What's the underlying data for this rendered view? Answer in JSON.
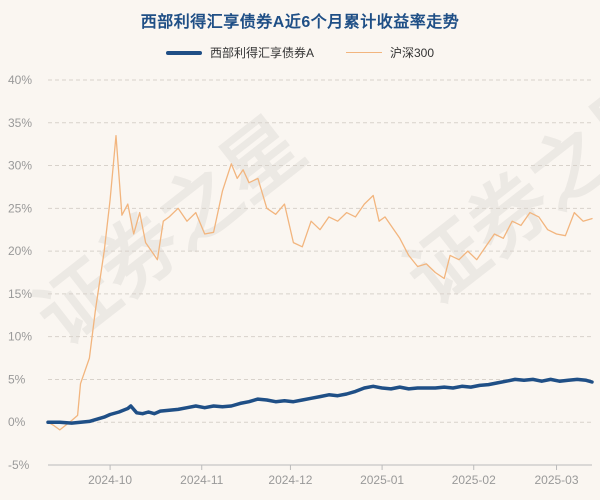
{
  "chart_data": {
    "type": "line",
    "title": "西部利得汇享债券A近6个月累计收益率走势",
    "xlabel": "",
    "ylabel": "",
    "ylim": [
      -5,
      40
    ],
    "y_ticks": [
      "40%",
      "35%",
      "30%",
      "25%",
      "20%",
      "15%",
      "10%",
      "5%",
      "0%",
      "-5%"
    ],
    "y_tick_values": [
      40,
      35,
      30,
      25,
      20,
      15,
      10,
      5,
      0,
      -5
    ],
    "x_range": [
      "2024-09-10",
      "2025-03-13"
    ],
    "x_ticks": [
      "2024-10",
      "2024-11",
      "2024-12",
      "2025-01",
      "2025-02",
      "2025-03"
    ],
    "grid": "horizontal-dashed",
    "legend_position": "top-center",
    "series": [
      {
        "name": "西部利得汇享债券A",
        "color": "#1f4f86",
        "points": [
          [
            "2024-09-10",
            0
          ],
          [
            "2024-09-14",
            0
          ],
          [
            "2024-09-18",
            -0.1
          ],
          [
            "2024-09-21",
            0
          ],
          [
            "2024-09-24",
            0.1
          ],
          [
            "2024-09-26",
            0.3
          ],
          [
            "2024-09-29",
            0.6
          ],
          [
            "2024-10-01",
            0.9
          ],
          [
            "2024-10-04",
            1.2
          ],
          [
            "2024-10-07",
            1.6
          ],
          [
            "2024-10-08",
            1.9
          ],
          [
            "2024-10-09",
            1.5
          ],
          [
            "2024-10-10",
            1.1
          ],
          [
            "2024-10-12",
            1.0
          ],
          [
            "2024-10-14",
            1.2
          ],
          [
            "2024-10-16",
            1.0
          ],
          [
            "2024-10-18",
            1.3
          ],
          [
            "2024-10-21",
            1.4
          ],
          [
            "2024-10-24",
            1.5
          ],
          [
            "2024-10-27",
            1.7
          ],
          [
            "2024-10-30",
            1.9
          ],
          [
            "2024-11-02",
            1.7
          ],
          [
            "2024-11-05",
            1.9
          ],
          [
            "2024-11-08",
            1.8
          ],
          [
            "2024-11-11",
            1.9
          ],
          [
            "2024-11-14",
            2.2
          ],
          [
            "2024-11-17",
            2.4
          ],
          [
            "2024-11-20",
            2.7
          ],
          [
            "2024-11-23",
            2.6
          ],
          [
            "2024-11-26",
            2.4
          ],
          [
            "2024-11-29",
            2.5
          ],
          [
            "2024-12-02",
            2.4
          ],
          [
            "2024-12-05",
            2.6
          ],
          [
            "2024-12-08",
            2.8
          ],
          [
            "2024-12-11",
            3.0
          ],
          [
            "2024-12-14",
            3.2
          ],
          [
            "2024-12-17",
            3.1
          ],
          [
            "2024-12-20",
            3.3
          ],
          [
            "2024-12-23",
            3.6
          ],
          [
            "2024-12-26",
            4.0
          ],
          [
            "2024-12-29",
            4.2
          ],
          [
            "2025-01-01",
            4.0
          ],
          [
            "2025-01-04",
            3.9
          ],
          [
            "2025-01-07",
            4.1
          ],
          [
            "2025-01-10",
            3.9
          ],
          [
            "2025-01-13",
            4.0
          ],
          [
            "2025-01-16",
            4.0
          ],
          [
            "2025-01-19",
            4.0
          ],
          [
            "2025-01-22",
            4.1
          ],
          [
            "2025-01-25",
            4.0
          ],
          [
            "2025-01-28",
            4.2
          ],
          [
            "2025-01-31",
            4.1
          ],
          [
            "2025-02-03",
            4.3
          ],
          [
            "2025-02-06",
            4.4
          ],
          [
            "2025-02-09",
            4.6
          ],
          [
            "2025-02-12",
            4.8
          ],
          [
            "2025-02-15",
            5.0
          ],
          [
            "2025-02-18",
            4.9
          ],
          [
            "2025-02-21",
            5.0
          ],
          [
            "2025-02-24",
            4.8
          ],
          [
            "2025-02-27",
            5.0
          ],
          [
            "2025-03-02",
            4.8
          ],
          [
            "2025-03-05",
            4.9
          ],
          [
            "2025-03-08",
            5.0
          ],
          [
            "2025-03-11",
            4.9
          ],
          [
            "2025-03-13",
            4.7
          ]
        ]
      },
      {
        "name": "沪深300",
        "color": "#f2b57e",
        "points": [
          [
            "2024-09-10",
            0
          ],
          [
            "2024-09-12",
            -0.4
          ],
          [
            "2024-09-14",
            -0.9
          ],
          [
            "2024-09-18",
            0.2
          ],
          [
            "2024-09-20",
            0.8
          ],
          [
            "2024-09-21",
            4.5
          ],
          [
            "2024-09-24",
            7.5
          ],
          [
            "2024-09-26",
            13.0
          ],
          [
            "2024-09-29",
            20.0
          ],
          [
            "2024-10-01",
            26.0
          ],
          [
            "2024-10-03",
            33.5
          ],
          [
            "2024-10-05",
            24.2
          ],
          [
            "2024-10-07",
            25.5
          ],
          [
            "2024-10-09",
            22.0
          ],
          [
            "2024-10-11",
            24.5
          ],
          [
            "2024-10-13",
            21.0
          ],
          [
            "2024-10-15",
            20.0
          ],
          [
            "2024-10-17",
            19.0
          ],
          [
            "2024-10-19",
            23.5
          ],
          [
            "2024-10-21",
            24.0
          ],
          [
            "2024-10-24",
            25.0
          ],
          [
            "2024-10-27",
            23.5
          ],
          [
            "2024-10-30",
            24.5
          ],
          [
            "2024-11-02",
            22.0
          ],
          [
            "2024-11-05",
            22.2
          ],
          [
            "2024-11-08",
            27.0
          ],
          [
            "2024-11-11",
            30.2
          ],
          [
            "2024-11-13",
            28.5
          ],
          [
            "2024-11-15",
            29.5
          ],
          [
            "2024-11-17",
            28.0
          ],
          [
            "2024-11-20",
            28.5
          ],
          [
            "2024-11-23",
            25.0
          ],
          [
            "2024-11-26",
            24.3
          ],
          [
            "2024-11-29",
            25.5
          ],
          [
            "2024-12-02",
            21.0
          ],
          [
            "2024-12-05",
            20.5
          ],
          [
            "2024-12-08",
            23.5
          ],
          [
            "2024-12-11",
            22.5
          ],
          [
            "2024-12-14",
            24.0
          ],
          [
            "2024-12-17",
            23.5
          ],
          [
            "2024-12-20",
            24.5
          ],
          [
            "2024-12-23",
            24.0
          ],
          [
            "2024-12-26",
            25.5
          ],
          [
            "2024-12-29",
            26.5
          ],
          [
            "2024-12-31",
            23.5
          ],
          [
            "2025-01-02",
            24.0
          ],
          [
            "2025-01-05",
            22.5
          ],
          [
            "2025-01-07",
            21.5
          ],
          [
            "2025-01-10",
            19.5
          ],
          [
            "2025-01-13",
            18.2
          ],
          [
            "2025-01-16",
            18.5
          ],
          [
            "2025-01-19",
            17.5
          ],
          [
            "2025-01-22",
            16.8
          ],
          [
            "2025-01-24",
            19.5
          ],
          [
            "2025-01-27",
            19.0
          ],
          [
            "2025-01-30",
            20.0
          ],
          [
            "2025-02-02",
            19.0
          ],
          [
            "2025-02-05",
            20.5
          ],
          [
            "2025-02-08",
            22.0
          ],
          [
            "2025-02-11",
            21.5
          ],
          [
            "2025-02-14",
            23.5
          ],
          [
            "2025-02-17",
            23.0
          ],
          [
            "2025-02-20",
            24.5
          ],
          [
            "2025-02-23",
            24.0
          ],
          [
            "2025-02-26",
            22.5
          ],
          [
            "2025-03-01",
            22.0
          ],
          [
            "2025-03-04",
            21.8
          ],
          [
            "2025-03-07",
            24.5
          ],
          [
            "2025-03-10",
            23.5
          ],
          [
            "2025-03-13",
            23.8
          ]
        ]
      }
    ]
  },
  "watermark": "证券之星"
}
